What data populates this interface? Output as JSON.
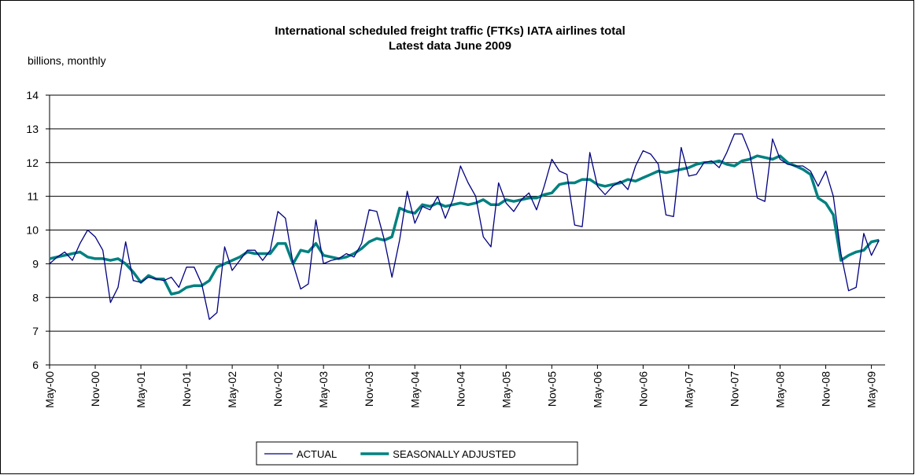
{
  "chart_data": {
    "type": "line",
    "title": "International scheduled freight traffic (FTKs) IATA airlines total",
    "subtitle": "Latest data June 2009",
    "y_label": "billions, monthly",
    "categories": [
      "May-00",
      null,
      null,
      null,
      null,
      null,
      "Nov-00",
      null,
      null,
      null,
      null,
      null,
      "May-01",
      null,
      null,
      null,
      null,
      null,
      "Nov-01",
      null,
      null,
      null,
      null,
      null,
      "May-02",
      null,
      null,
      null,
      null,
      null,
      "Nov-02",
      null,
      null,
      null,
      null,
      null,
      "May-03",
      null,
      null,
      null,
      null,
      null,
      "Nov-03",
      null,
      null,
      null,
      null,
      null,
      "May-04",
      null,
      null,
      null,
      null,
      null,
      "Nov-04",
      null,
      null,
      null,
      null,
      null,
      "May-05",
      null,
      null,
      null,
      null,
      null,
      "Nov-05",
      null,
      null,
      null,
      null,
      null,
      "May-06",
      null,
      null,
      null,
      null,
      null,
      "Nov-06",
      null,
      null,
      null,
      null,
      null,
      "May-07",
      null,
      null,
      null,
      null,
      null,
      "Nov-07",
      null,
      null,
      null,
      null,
      null,
      "May-08",
      null,
      null,
      null,
      null,
      null,
      "Nov-08",
      null,
      null,
      null,
      null,
      null,
      "May-09",
      null
    ],
    "series": [
      {
        "name": "ACTUAL",
        "color": "#000080",
        "values": [
          9.0,
          9.2,
          9.35,
          9.1,
          9.6,
          10.0,
          9.8,
          9.4,
          7.85,
          8.3,
          9.65,
          8.5,
          8.45,
          8.6,
          8.55,
          8.5,
          8.6,
          8.3,
          8.9,
          8.9,
          8.4,
          7.35,
          7.55,
          9.5,
          8.8,
          9.1,
          9.4,
          9.4,
          9.1,
          9.4,
          10.55,
          10.35,
          9.0,
          8.25,
          8.4,
          10.3,
          9.0,
          9.1,
          9.15,
          9.3,
          9.2,
          9.6,
          10.6,
          10.55,
          9.7,
          8.6,
          9.7,
          11.15,
          10.2,
          10.7,
          10.6,
          11.0,
          10.35,
          10.9,
          11.9,
          11.4,
          11.0,
          9.8,
          9.5,
          11.4,
          10.8,
          10.55,
          10.9,
          11.1,
          10.6,
          11.3,
          12.1,
          11.75,
          11.65,
          10.15,
          10.1,
          12.3,
          11.3,
          11.05,
          11.3,
          11.45,
          11.2,
          11.9,
          12.35,
          12.25,
          11.95,
          10.45,
          10.4,
          12.45,
          11.6,
          11.65,
          12.0,
          12.05,
          11.85,
          12.3,
          12.85,
          12.85,
          12.3,
          10.95,
          10.85,
          12.7,
          12.1,
          11.95,
          11.9,
          11.9,
          11.75,
          11.3,
          11.75,
          11.0,
          9.3,
          8.2,
          8.3,
          9.9,
          9.25,
          9.7
        ]
      },
      {
        "name": "SEASONALLY ADJUSTED",
        "color": "#008080",
        "values": [
          9.15,
          9.2,
          9.25,
          9.3,
          9.35,
          9.2,
          9.15,
          9.15,
          9.1,
          9.15,
          9.0,
          8.75,
          8.45,
          8.65,
          8.55,
          8.55,
          8.1,
          8.15,
          8.3,
          8.35,
          8.35,
          8.5,
          8.9,
          9.0,
          9.1,
          9.2,
          9.35,
          9.3,
          9.3,
          9.3,
          9.6,
          9.6,
          9.0,
          9.4,
          9.35,
          9.6,
          9.25,
          9.2,
          9.15,
          9.2,
          9.3,
          9.45,
          9.65,
          9.75,
          9.7,
          9.8,
          10.65,
          10.55,
          10.5,
          10.75,
          10.7,
          10.8,
          10.7,
          10.75,
          10.8,
          10.75,
          10.8,
          10.9,
          10.75,
          10.75,
          10.9,
          10.85,
          10.9,
          10.95,
          10.95,
          11.05,
          11.1,
          11.35,
          11.4,
          11.4,
          11.5,
          11.5,
          11.35,
          11.3,
          11.35,
          11.4,
          11.5,
          11.45,
          11.55,
          11.65,
          11.75,
          11.7,
          11.75,
          11.8,
          11.85,
          11.95,
          12.0,
          12.0,
          12.05,
          11.95,
          11.9,
          12.05,
          12.1,
          12.2,
          12.15,
          12.1,
          12.2,
          12.0,
          11.9,
          11.8,
          11.65,
          10.95,
          10.8,
          10.45,
          9.1,
          9.25,
          9.35,
          9.4,
          9.65,
          9.7
        ]
      }
    ],
    "ylim": [
      6,
      14
    ],
    "yticks": [
      6,
      7,
      8,
      9,
      10,
      11,
      12,
      13,
      14
    ],
    "grid": true,
    "legend": "bottom"
  }
}
